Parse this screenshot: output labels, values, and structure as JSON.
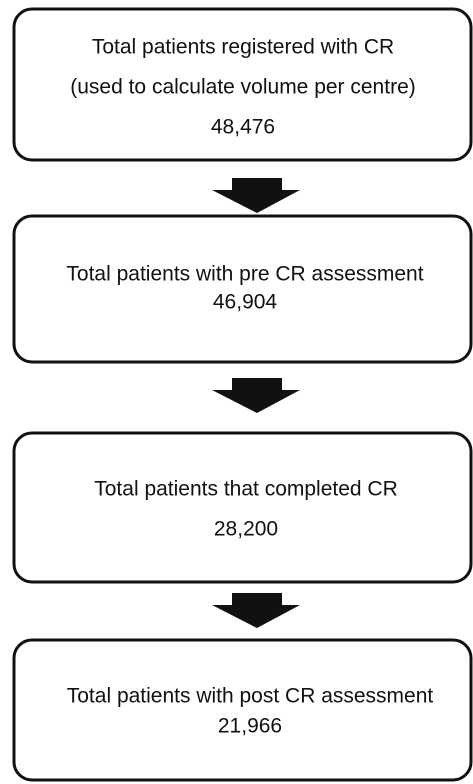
{
  "nodes": [
    {
      "lines": [
        "Total patients registered with CR",
        "(used to calculate volume per centre)"
      ],
      "count": "48,476"
    },
    {
      "lines": [
        "Total patients with pre CR assessment"
      ],
      "count": "46,904"
    },
    {
      "lines": [
        "Total patients that completed CR"
      ],
      "count": "28,200"
    },
    {
      "lines": [
        "Total patients with post CR assessment"
      ],
      "count": "21,966"
    }
  ]
}
